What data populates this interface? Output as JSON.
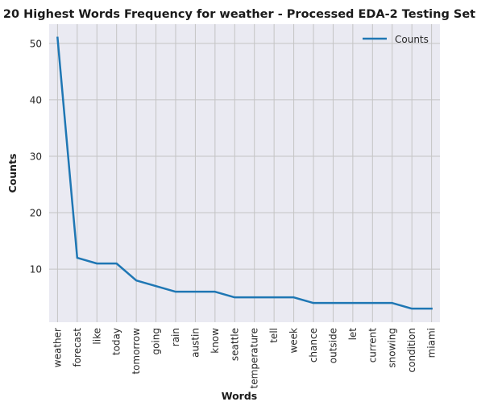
{
  "chart_data": {
    "type": "line",
    "title": "20 Highest Words Frequency for weather - Processed EDA-2 Testing Set",
    "xlabel": "Words",
    "ylabel": "Counts",
    "categories": [
      "weather",
      "forecast",
      "like",
      "today",
      "tomorrow",
      "going",
      "rain",
      "austin",
      "know",
      "seattle",
      "temperature",
      "tell",
      "week",
      "chance",
      "outside",
      "let",
      "current",
      "snowing",
      "condition",
      "miami"
    ],
    "series": [
      {
        "name": "Counts",
        "values": [
          51,
          12,
          11,
          11,
          8,
          7,
          6,
          6,
          6,
          5,
          5,
          5,
          5,
          4,
          4,
          4,
          4,
          4,
          3,
          3
        ]
      }
    ],
    "yticks": [
      10,
      20,
      30,
      40,
      50
    ],
    "ylim": [
      0.6,
      53.4
    ],
    "grid": true,
    "legend": "top-right",
    "colors": {
      "line": "#1f77b4",
      "background": "#eaeaf2",
      "grid": "#c4c4c4"
    }
  }
}
